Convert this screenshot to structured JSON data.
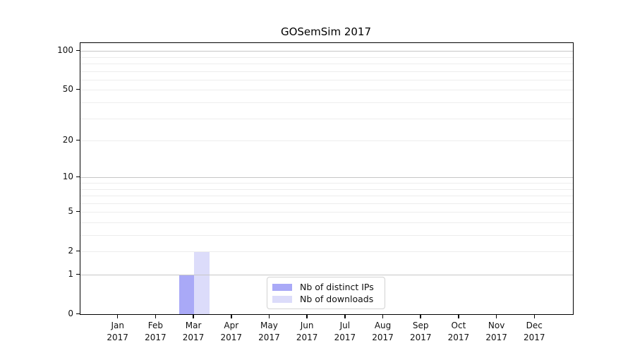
{
  "title": "GOSemSim 2017",
  "chart_data": {
    "type": "bar",
    "title": "GOSemSim 2017",
    "xlabel": "",
    "ylabel": "",
    "year": "2017",
    "categories": [
      "Jan",
      "Feb",
      "Mar",
      "Apr",
      "May",
      "Jun",
      "Jul",
      "Aug",
      "Sep",
      "Oct",
      "Nov",
      "Dec"
    ],
    "series": [
      {
        "name": "Nb of distinct IPs",
        "color": "#a9a9f7",
        "values": [
          0,
          0,
          1,
          0,
          0,
          0,
          0,
          0,
          0,
          0,
          0,
          0
        ]
      },
      {
        "name": "Nb of downloads",
        "color": "#dcdcfa",
        "values": [
          0,
          0,
          2,
          0,
          0,
          0,
          0,
          0,
          0,
          0,
          0,
          0
        ]
      }
    ],
    "scale": "log1p",
    "ylim": [
      0,
      115
    ],
    "yticks": [
      0,
      1,
      2,
      5,
      10,
      20,
      50,
      100
    ],
    "grid": {
      "major": [
        1,
        10,
        100
      ],
      "minor": [
        2,
        3,
        4,
        5,
        6,
        7,
        8,
        9,
        20,
        30,
        40,
        50,
        60,
        70,
        80,
        90
      ]
    },
    "legend_position": "bottom-center",
    "bar_width_fraction": 0.4
  }
}
